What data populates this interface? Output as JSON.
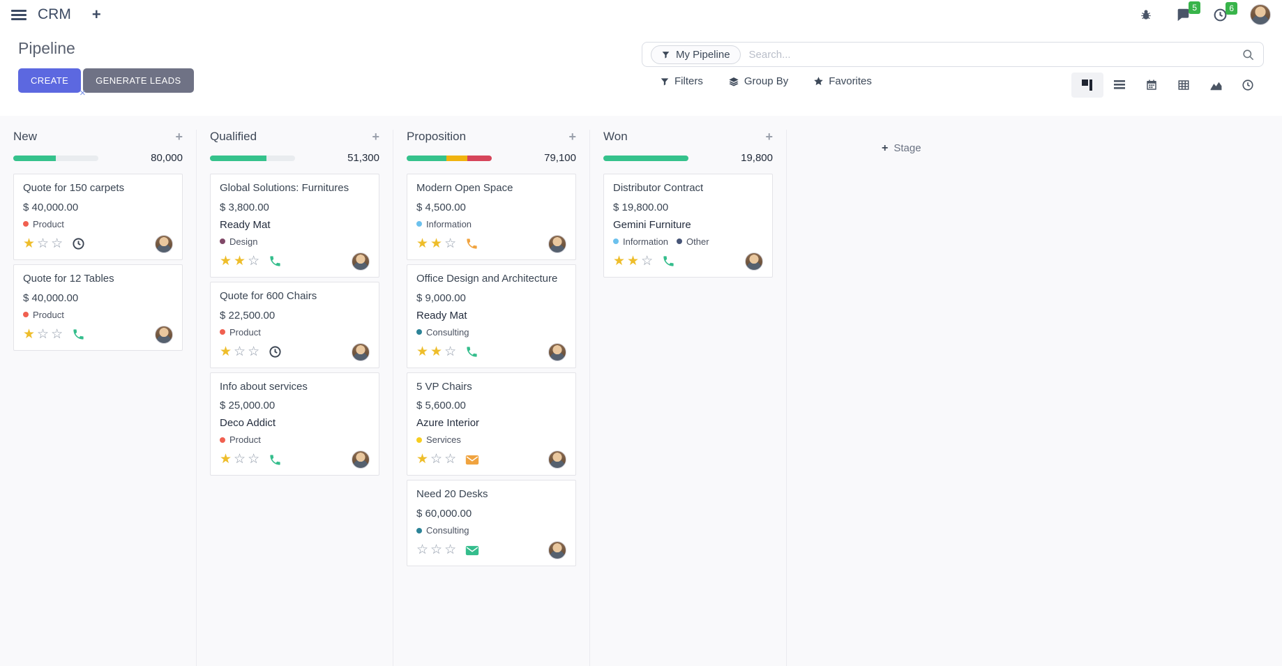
{
  "navbar": {
    "app_name": "CRM",
    "messages_badge": "5",
    "activities_badge": "6"
  },
  "control_panel": {
    "title": "Pipeline",
    "buttons": {
      "create": "CREATE",
      "generate_leads": "GENERATE LEADS"
    },
    "search": {
      "facet_label": "My Pipeline",
      "placeholder": "Search...",
      "remove_glyph": "×"
    },
    "menus": {
      "filters": "Filters",
      "group_by": "Group By",
      "favorites": "Favorites"
    },
    "view_switcher": [
      "kanban",
      "list",
      "calendar",
      "pivot",
      "graph",
      "activity"
    ],
    "active_view": "kanban"
  },
  "kanban": {
    "add_stage_label": "Stage",
    "columns": [
      {
        "name": "New",
        "total": "80,000",
        "progress": [
          {
            "color": "green",
            "pct": 50
          }
        ],
        "cards": [
          {
            "title": "Quote for 150 carpets",
            "amount": "$ 40,000.00",
            "tags": [
              {
                "label": "Product",
                "color": "#f06050"
              }
            ],
            "stars": 1,
            "activity": "clock"
          },
          {
            "title": "Quote for 12 Tables",
            "amount": "$ 40,000.00",
            "tags": [
              {
                "label": "Product",
                "color": "#f06050"
              }
            ],
            "stars": 1,
            "activity": "phone-green"
          }
        ]
      },
      {
        "name": "Qualified",
        "total": "51,300",
        "progress": [
          {
            "color": "green",
            "pct": 66
          }
        ],
        "cards": [
          {
            "title": "Global Solutions: Furnitures",
            "amount": "$ 3,800.00",
            "partner": "Ready Mat",
            "tags": [
              {
                "label": "Design",
                "color": "#814968"
              }
            ],
            "stars": 2,
            "activity": "phone-green"
          },
          {
            "title": "Quote for 600 Chairs",
            "amount": "$ 22,500.00",
            "tags": [
              {
                "label": "Product",
                "color": "#f06050"
              }
            ],
            "stars": 1,
            "activity": "clock"
          },
          {
            "title": "Info about services",
            "amount": "$ 25,000.00",
            "partner": "Deco Addict",
            "tags": [
              {
                "label": "Product",
                "color": "#f06050"
              }
            ],
            "stars": 1,
            "activity": "phone-green"
          }
        ]
      },
      {
        "name": "Proposition",
        "total": "79,100",
        "progress": [
          {
            "color": "green",
            "pct": 47
          },
          {
            "color": "yellow",
            "pct": 24
          },
          {
            "color": "red",
            "pct": 29
          }
        ],
        "cards": [
          {
            "title": "Modern Open Space",
            "amount": "$ 4,500.00",
            "tags": [
              {
                "label": "Information",
                "color": "#6cc1ed"
              }
            ],
            "stars": 2,
            "activity": "phone-orange"
          },
          {
            "title": "Office Design and Architecture",
            "amount": "$ 9,000.00",
            "partner": "Ready Mat",
            "tags": [
              {
                "label": "Consulting",
                "color": "#2c8397"
              }
            ],
            "stars": 2,
            "activity": "phone-green"
          },
          {
            "title": "5 VP Chairs",
            "amount": "$ 5,600.00",
            "partner": "Azure Interior",
            "tags": [
              {
                "label": "Services",
                "color": "#f7cd1f"
              }
            ],
            "stars": 1,
            "activity": "envelope-orange"
          },
          {
            "title": "Need 20 Desks",
            "amount": "$ 60,000.00",
            "tags": [
              {
                "label": "Consulting",
                "color": "#2c8397"
              }
            ],
            "stars": 0,
            "activity": "envelope-green"
          }
        ]
      },
      {
        "name": "Won",
        "total": "19,800",
        "progress": [
          {
            "color": "green",
            "pct": 100
          }
        ],
        "cards": [
          {
            "title": "Distributor Contract",
            "amount": "$ 19,800.00",
            "partner": "Gemini Furniture",
            "tags": [
              {
                "label": "Information",
                "color": "#6cc1ed"
              },
              {
                "label": "Other",
                "color": "#475577"
              }
            ],
            "stars": 2,
            "activity": "phone-green"
          }
        ]
      }
    ]
  },
  "colors": {
    "green": "#35c28c",
    "yellow": "#f0b30f",
    "red": "#d6455a",
    "muted": "#e9ecef",
    "accent": "#5c68e0",
    "badge_green": "#38b44a",
    "star_filled": "#eebd2a",
    "activity_green": "#34bd8c",
    "activity_orange": "#f0a33f"
  }
}
